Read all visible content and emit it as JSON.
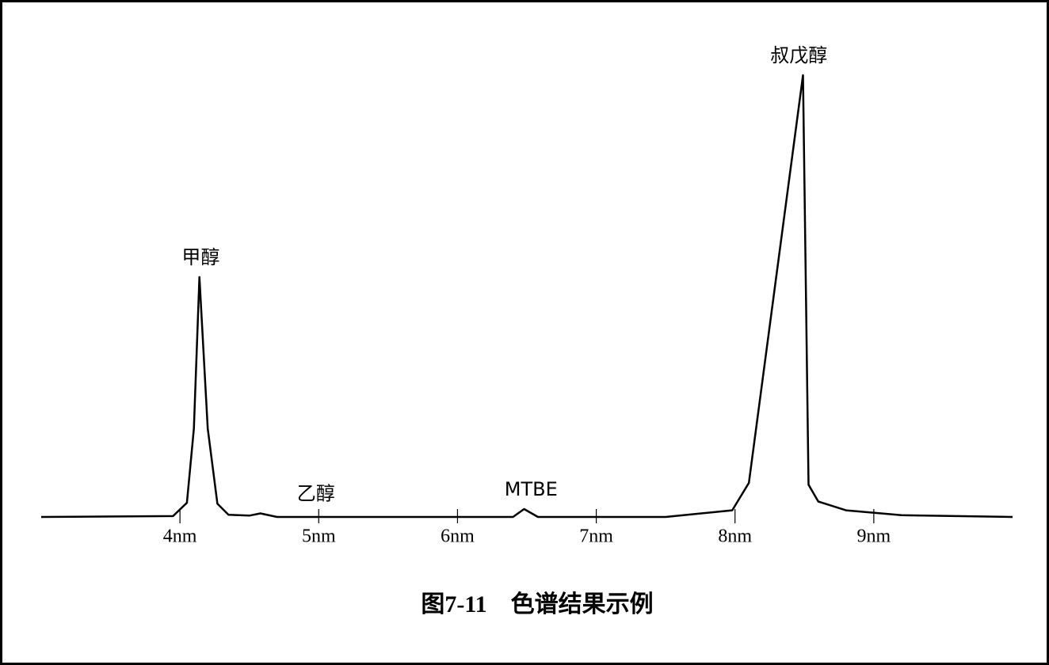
{
  "chart_data": {
    "type": "line",
    "caption": "图7-11　色谱结果示例",
    "x": [
      3.0,
      3.95,
      4.05,
      4.1,
      4.14,
      4.2,
      4.27,
      4.35,
      4.5,
      4.58,
      4.7,
      5.2,
      6.4,
      6.48,
      6.58,
      7.5,
      7.98,
      8.1,
      8.49,
      8.53,
      8.6,
      8.8,
      9.2,
      10.0
    ],
    "series": [
      {
        "color": "#000000",
        "values": [
          0,
          0.2,
          3.2,
          20,
          54.3,
          20,
          3,
          0.5,
          0.3,
          0.8,
          0,
          0,
          0,
          1.8,
          0,
          0,
          1.5,
          7.7,
          100,
          7.3,
          3.5,
          1.5,
          0.4,
          0
        ]
      }
    ],
    "annotations": [
      {
        "text": "甲醇",
        "x": 4.15,
        "y": 54.3
      },
      {
        "text": "乙醇",
        "x": 4.98,
        "y": 0.8
      },
      {
        "text": "MTBE",
        "x": 6.53,
        "y": 1.8
      },
      {
        "text": "叔戊醇",
        "x": 8.46,
        "y": 100
      }
    ],
    "xlim": [
      3.0,
      10.0
    ],
    "ylim": [
      0,
      100
    ],
    "xticks": [
      {
        "value": 4,
        "label": "4nm"
      },
      {
        "value": 5,
        "label": "5nm"
      },
      {
        "value": 6,
        "label": "6nm"
      },
      {
        "value": 7,
        "label": "7nm"
      },
      {
        "value": 8,
        "label": "8nm"
      },
      {
        "value": 9,
        "label": "9nm"
      }
    ]
  }
}
